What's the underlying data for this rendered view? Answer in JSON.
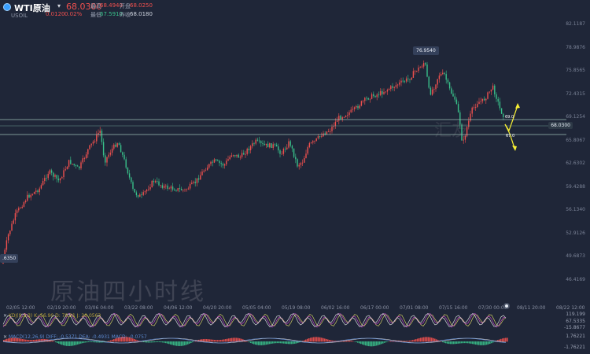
{
  "header": {
    "symbol": "WTI原油",
    "dropdown_icon": "▾",
    "last_price": "68.0300",
    "code": "USOIL",
    "change": "0.0120",
    "change_pct": "0.02%",
    "high_label": "最高",
    "high_value": "68.4940",
    "open_label": "开盘",
    "open_value": "68.0250",
    "low_label": "最低",
    "low_value": "67.5910",
    "prev_close_label": "昨收",
    "prev_close_value": "68.0180"
  },
  "price_axis": {
    "ticks": [
      "82.1187",
      "78.9876",
      "75.8565",
      "72.4315",
      "69.1254",
      "65.8067",
      "62.6302",
      "59.4288",
      "56.1340",
      "52.9126",
      "49.6873",
      "46.4169"
    ],
    "current_price_badge": "68.0300"
  },
  "annotations": {
    "peak": "76.9540",
    "left_low": ".6350",
    "zone_top": "69.0",
    "zone_bottom": "67.0"
  },
  "time_axis": {
    "ticks": [
      "02/05 12:00",
      "02/19 20:00",
      "03/06 04:00",
      "03/22 08:00",
      "04/06 12:00",
      "04/20 20:00",
      "05/05 04:00",
      "05/19 08:00",
      "06/02 16:00",
      "06/17 00:00",
      "07/01 08:00",
      "07/15 16:00",
      "07/30 00:00",
      "08/11 20:00",
      "08/22 12:00"
    ]
  },
  "watermark": "原油四小时线",
  "watermark_small": "汇友",
  "indicators": {
    "kdj_label": "KDJ(9,3,3) K: 56.90 D: 78.21 J: 20.0563",
    "kdj_values": [
      "119.199",
      "67.5335",
      "-15.8677"
    ],
    "macd_label": "MACD(12,26,9) DIFF: -0.5371 DEA: -0.4931 MACD: -0.0757",
    "macd_values": [
      "1.76221",
      "-1.76221"
    ]
  },
  "colors": {
    "background": "#1f2638",
    "up": "#f0504e",
    "down": "#38c08a",
    "level_line": "#9fbfb6",
    "arrow": "#f6ee34"
  }
}
